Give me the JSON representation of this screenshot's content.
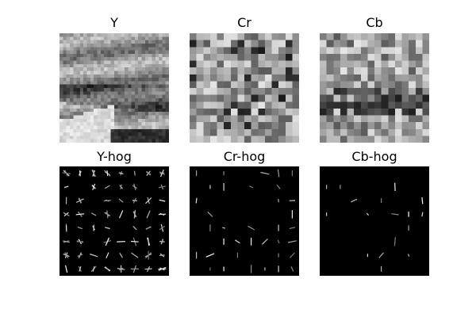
{
  "panels": [
    {
      "id": "y",
      "title": "Y",
      "kind": "image",
      "seed": 11,
      "style": "streak"
    },
    {
      "id": "cr",
      "title": "Cr",
      "kind": "image",
      "seed": 29,
      "style": "blocks"
    },
    {
      "id": "cb",
      "title": "Cb",
      "kind": "image",
      "seed": 47,
      "style": "blocks-dark"
    },
    {
      "id": "y-hog",
      "title": "Y-hog",
      "kind": "hog",
      "seed": 5,
      "density": "high"
    },
    {
      "id": "cr-hog",
      "title": "Cr-hog",
      "kind": "hog",
      "seed": 17,
      "density": "medium"
    },
    {
      "id": "cb-hog",
      "title": "Cb-hog",
      "kind": "hog",
      "seed": 23,
      "density": "low"
    }
  ]
}
